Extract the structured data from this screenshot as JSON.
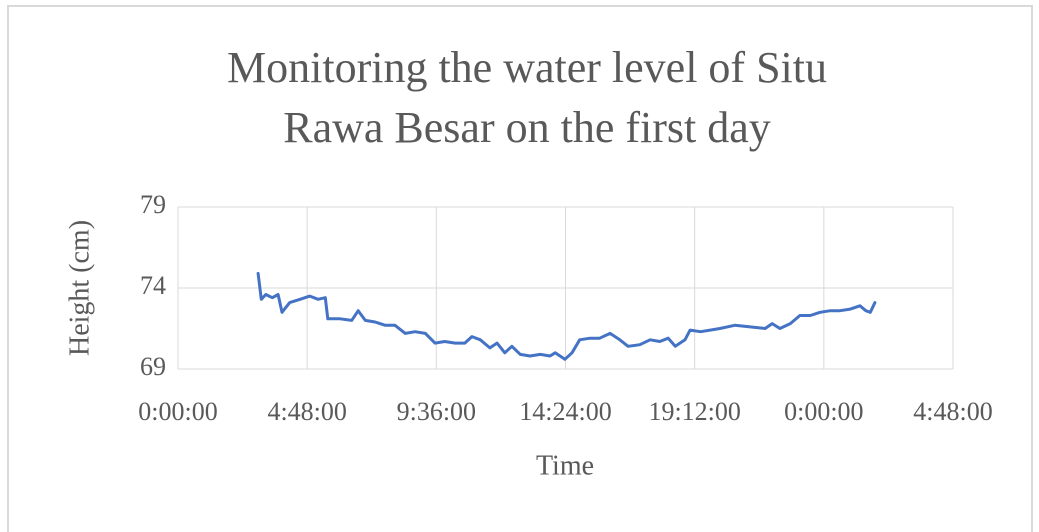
{
  "chart_data": {
    "type": "line",
    "title_lines": [
      "Monitoring the water level of Situ",
      "Rawa Besar on the first day"
    ],
    "x_label": "Time",
    "y_label": "Height (cm)",
    "xlim": [
      0,
      1.2
    ],
    "xticks": [
      {
        "value": 0,
        "label": "0:00:00"
      },
      {
        "value": 0.2,
        "label": "4:48:00"
      },
      {
        "value": 0.4,
        "label": "9:36:00"
      },
      {
        "value": 0.6,
        "label": "14:24:00"
      },
      {
        "value": 0.8,
        "label": "19:12:00"
      },
      {
        "value": 1.0,
        "label": "0:00:00"
      },
      {
        "value": 1.2,
        "label": "4:48:00"
      }
    ],
    "ylim": [
      69,
      79
    ],
    "yticks": [
      69,
      74,
      79
    ],
    "grid": true,
    "series": [
      {
        "color": "#4472c4",
        "x": [
          0.124,
          0.129,
          0.136,
          0.146,
          0.155,
          0.161,
          0.173,
          0.189,
          0.204,
          0.217,
          0.228,
          0.232,
          0.251,
          0.269,
          0.279,
          0.29,
          0.305,
          0.321,
          0.336,
          0.352,
          0.367,
          0.383,
          0.398,
          0.413,
          0.429,
          0.444,
          0.455,
          0.468,
          0.483,
          0.494,
          0.506,
          0.517,
          0.53,
          0.545,
          0.561,
          0.576,
          0.584,
          0.599,
          0.61,
          0.622,
          0.638,
          0.653,
          0.669,
          0.684,
          0.697,
          0.715,
          0.731,
          0.746,
          0.759,
          0.77,
          0.785,
          0.793,
          0.809,
          0.824,
          0.839,
          0.862,
          0.886,
          0.909,
          0.92,
          0.932,
          0.948,
          0.963,
          0.979,
          0.994,
          1.01,
          1.025,
          1.041,
          1.056,
          1.065,
          1.072,
          1.079
        ],
        "values": [
          74.9,
          73.3,
          73.6,
          73.4,
          73.6,
          72.5,
          73.1,
          73.3,
          73.5,
          73.3,
          73.4,
          72.1,
          72.1,
          72.0,
          72.6,
          72.0,
          71.9,
          71.7,
          71.7,
          71.2,
          71.3,
          71.2,
          70.6,
          70.7,
          70.6,
          70.6,
          71.0,
          70.8,
          70.3,
          70.6,
          70.0,
          70.4,
          69.9,
          69.8,
          69.9,
          69.8,
          70.0,
          69.6,
          70.0,
          70.8,
          70.9,
          70.9,
          71.2,
          70.8,
          70.4,
          70.5,
          70.8,
          70.7,
          70.9,
          70.4,
          70.8,
          71.4,
          71.3,
          71.4,
          71.5,
          71.7,
          71.6,
          71.5,
          71.8,
          71.5,
          71.8,
          72.3,
          72.3,
          72.5,
          72.6,
          72.6,
          72.7,
          72.9,
          72.6,
          72.5,
          73.1
        ]
      }
    ]
  }
}
